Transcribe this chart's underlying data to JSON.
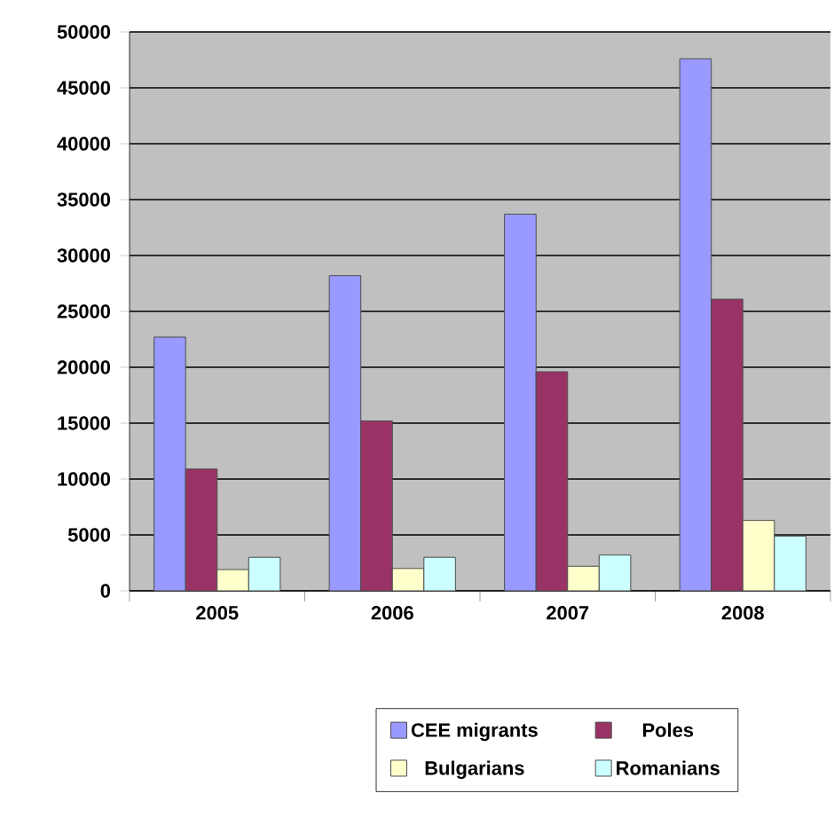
{
  "chart_data": {
    "type": "bar",
    "categories": [
      "2005",
      "2006",
      "2007",
      "2008"
    ],
    "series": [
      {
        "name": "CEE migrants",
        "color": "#9999ff",
        "values": [
          22700,
          28200,
          33700,
          47600
        ]
      },
      {
        "name": "Poles",
        "color": "#993366",
        "values": [
          10900,
          15200,
          19600,
          26100
        ]
      },
      {
        "name": "Bulgarians",
        "color": "#ffffcc",
        "values": [
          1900,
          2000,
          2200,
          6300
        ]
      },
      {
        "name": "Romanians",
        "color": "#ccffff",
        "values": [
          3000,
          3000,
          3200,
          4900
        ]
      }
    ],
    "ylim": [
      0,
      50000
    ],
    "yticks": [
      0,
      5000,
      10000,
      15000,
      20000,
      25000,
      30000,
      35000,
      40000,
      45000,
      50000
    ],
    "grid": "y",
    "legend": "bottom"
  }
}
